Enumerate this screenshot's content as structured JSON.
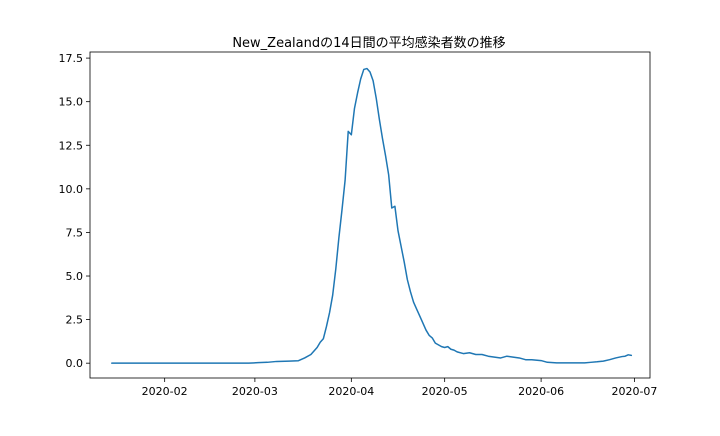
{
  "chart_data": {
    "type": "line",
    "title": "New_Zealandの14日間の平均感染者数の推移",
    "xlabel": "",
    "ylabel": "",
    "x_type": "date",
    "xlim": [
      "2020-01-08",
      "2020-07-06"
    ],
    "ylim": [
      -0.85,
      17.85
    ],
    "grid": false,
    "x_ticks": [
      "2020-02-01",
      "2020-03-01",
      "2020-04-01",
      "2020-05-01",
      "2020-06-01",
      "2020-07-01"
    ],
    "x_tick_labels": [
      "2020-02",
      "2020-03",
      "2020-04",
      "2020-05",
      "2020-06",
      "2020-07"
    ],
    "y_ticks": [
      0,
      2.5,
      5,
      7.5,
      10,
      12.5,
      15,
      17.5
    ],
    "y_tick_labels": [
      "0.0",
      "2.5",
      "5.0",
      "7.5",
      "10.0",
      "12.5",
      "15.0",
      "17.5"
    ],
    "series": [
      {
        "color": "#1f77b4",
        "points": [
          [
            "2020-01-15",
            0
          ],
          [
            "2020-02-01",
            0
          ],
          [
            "2020-02-15",
            0
          ],
          [
            "2020-02-28",
            0
          ],
          [
            "2020-03-02",
            0.03
          ],
          [
            "2020-03-05",
            0.05
          ],
          [
            "2020-03-08",
            0.1
          ],
          [
            "2020-03-12",
            0.12
          ],
          [
            "2020-03-15",
            0.14
          ],
          [
            "2020-03-17",
            0.3
          ],
          [
            "2020-03-19",
            0.5
          ],
          [
            "2020-03-21",
            0.9
          ],
          [
            "2020-03-22",
            1.2
          ],
          [
            "2020-03-23",
            1.4
          ],
          [
            "2020-03-24",
            2.1
          ],
          [
            "2020-03-25",
            2.9
          ],
          [
            "2020-03-26",
            3.9
          ],
          [
            "2020-03-27",
            5.4
          ],
          [
            "2020-03-28",
            7.2
          ],
          [
            "2020-03-29",
            8.8
          ],
          [
            "2020-03-30",
            10.5
          ],
          [
            "2020-03-31",
            13.3
          ],
          [
            "2020-04-01",
            13.1
          ],
          [
            "2020-04-02",
            14.6
          ],
          [
            "2020-04-03",
            15.5
          ],
          [
            "2020-04-04",
            16.3
          ],
          [
            "2020-04-05",
            16.85
          ],
          [
            "2020-04-06",
            16.9
          ],
          [
            "2020-04-07",
            16.7
          ],
          [
            "2020-04-08",
            16.2
          ],
          [
            "2020-04-09",
            15.2
          ],
          [
            "2020-04-10",
            14.0
          ],
          [
            "2020-04-11",
            12.9
          ],
          [
            "2020-04-12",
            11.9
          ],
          [
            "2020-04-13",
            10.8
          ],
          [
            "2020-04-14",
            8.9
          ],
          [
            "2020-04-15",
            9.0
          ],
          [
            "2020-04-16",
            7.6
          ],
          [
            "2020-04-17",
            6.7
          ],
          [
            "2020-04-18",
            5.8
          ],
          [
            "2020-04-19",
            4.8
          ],
          [
            "2020-04-20",
            4.1
          ],
          [
            "2020-04-21",
            3.5
          ],
          [
            "2020-04-22",
            3.1
          ],
          [
            "2020-04-23",
            2.7
          ],
          [
            "2020-04-24",
            2.3
          ],
          [
            "2020-04-25",
            1.9
          ],
          [
            "2020-04-26",
            1.6
          ],
          [
            "2020-04-27",
            1.45
          ],
          [
            "2020-04-28",
            1.15
          ],
          [
            "2020-04-29",
            1.05
          ],
          [
            "2020-04-30",
            0.95
          ],
          [
            "2020-05-01",
            0.9
          ],
          [
            "2020-05-02",
            0.95
          ],
          [
            "2020-05-03",
            0.8
          ],
          [
            "2020-05-04",
            0.75
          ],
          [
            "2020-05-05",
            0.65
          ],
          [
            "2020-05-07",
            0.55
          ],
          [
            "2020-05-09",
            0.6
          ],
          [
            "2020-05-11",
            0.5
          ],
          [
            "2020-05-13",
            0.5
          ],
          [
            "2020-05-15",
            0.4
          ],
          [
            "2020-05-17",
            0.35
          ],
          [
            "2020-05-19",
            0.3
          ],
          [
            "2020-05-20",
            0.35
          ],
          [
            "2020-05-21",
            0.4
          ],
          [
            "2020-05-23",
            0.35
          ],
          [
            "2020-05-25",
            0.3
          ],
          [
            "2020-05-27",
            0.2
          ],
          [
            "2020-05-29",
            0.2
          ],
          [
            "2020-06-01",
            0.15
          ],
          [
            "2020-06-03",
            0.05
          ],
          [
            "2020-06-06",
            0.02
          ],
          [
            "2020-06-09",
            0.02
          ],
          [
            "2020-06-12",
            0.02
          ],
          [
            "2020-06-15",
            0.02
          ],
          [
            "2020-06-17",
            0.05
          ],
          [
            "2020-06-19",
            0.08
          ],
          [
            "2020-06-21",
            0.12
          ],
          [
            "2020-06-23",
            0.2
          ],
          [
            "2020-06-25",
            0.3
          ],
          [
            "2020-06-27",
            0.38
          ],
          [
            "2020-06-28",
            0.4
          ],
          [
            "2020-06-29",
            0.48
          ],
          [
            "2020-06-30",
            0.45
          ]
        ]
      }
    ]
  }
}
